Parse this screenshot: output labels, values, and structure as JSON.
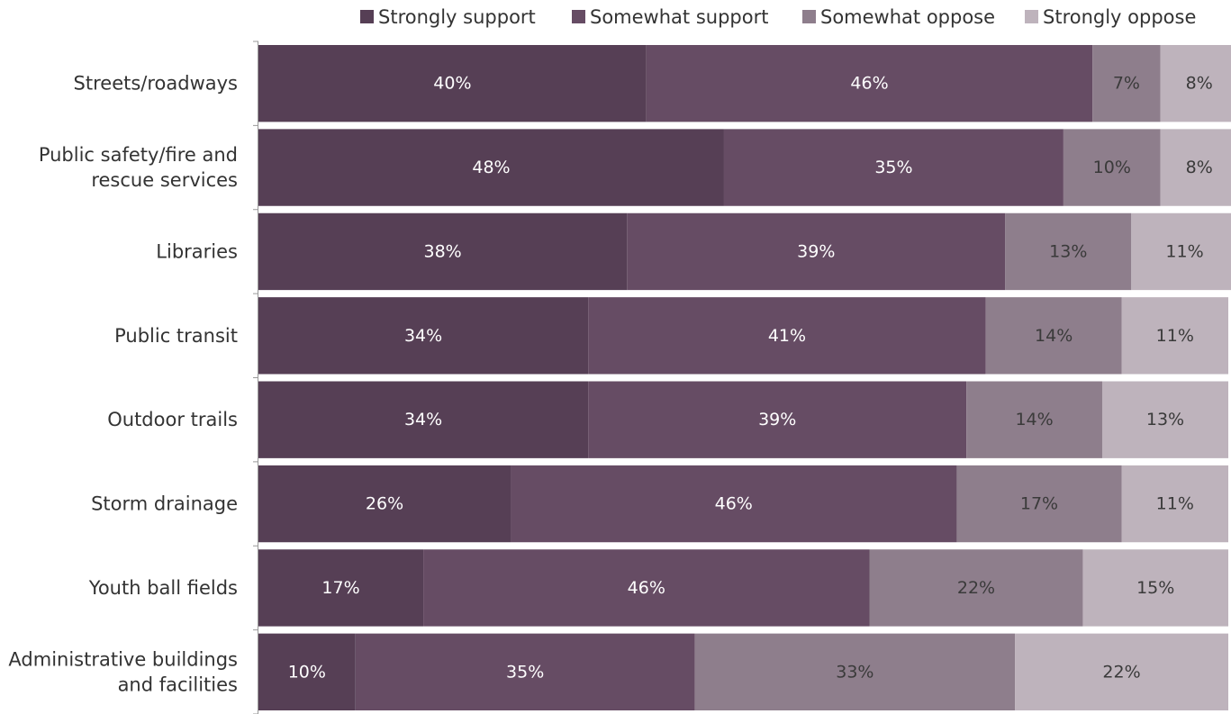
{
  "chart_data": {
    "type": "bar",
    "orientation": "horizontal",
    "stacked": true,
    "percent_stacked": true,
    "title": "",
    "xlabel": "",
    "ylabel": "",
    "xlim": [
      0,
      100
    ],
    "legend_position": "top",
    "grid": false,
    "categories": [
      [
        "Streets/roadways"
      ],
      [
        "Public safety/fire and",
        "rescue services"
      ],
      [
        "Libraries"
      ],
      [
        "Public transit"
      ],
      [
        "Outdoor trails"
      ],
      [
        "Storm drainage"
      ],
      [
        "Youth ball fields"
      ],
      [
        "Administrative buildings",
        "and facilities"
      ]
    ],
    "series": [
      {
        "name": "Strongly support",
        "color": "#563f55",
        "label_color": "#ffffff",
        "values": [
          40,
          48,
          38,
          34,
          34,
          26,
          17,
          10
        ]
      },
      {
        "name": "Somewhat support",
        "color": "#664c64",
        "label_color": "#ffffff",
        "values": [
          46,
          35,
          39,
          41,
          39,
          46,
          46,
          35
        ]
      },
      {
        "name": "Somewhat oppose",
        "color": "#8e7e8c",
        "label_color": "#3a3a3a",
        "values": [
          7,
          10,
          13,
          14,
          14,
          17,
          22,
          33
        ]
      },
      {
        "name": "Strongly oppose",
        "color": "#beb3bc",
        "label_color": "#3a3a3a",
        "values": [
          8,
          8,
          11,
          11,
          13,
          11,
          15,
          22
        ]
      }
    ],
    "value_suffix": "%"
  }
}
